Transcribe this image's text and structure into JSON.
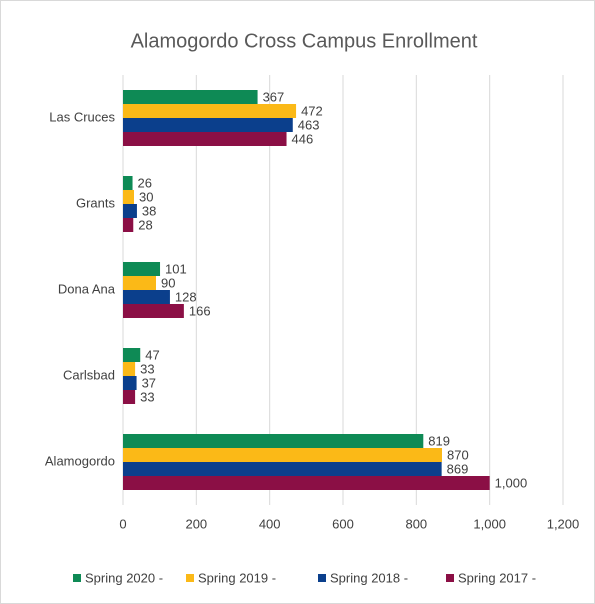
{
  "chart_data": {
    "type": "bar",
    "orientation": "horizontal",
    "title": "Alamogordo Cross Campus Enrollment",
    "categories": [
      "Las Cruces",
      "Grants",
      "Dona Ana",
      "Carlsbad",
      "Alamogordo"
    ],
    "series": [
      {
        "name": "Spring 2020 -",
        "color": "#0e8a55",
        "values": [
          367,
          26,
          101,
          47,
          819
        ]
      },
      {
        "name": "Spring 2019 -",
        "color": "#fbb917",
        "values": [
          472,
          30,
          90,
          33,
          870
        ]
      },
      {
        "name": "Spring 2018 -",
        "color": "#0b3f8c",
        "values": [
          463,
          38,
          128,
          37,
          869
        ]
      },
      {
        "name": "Spring 2017 -",
        "color": "#8b0f45",
        "values": [
          446,
          28,
          166,
          33,
          1000
        ],
        "value_labels": [
          "446",
          "28",
          "166",
          "33",
          "1,000"
        ]
      }
    ],
    "xlim": [
      0,
      1200
    ],
    "xticks": [
      0,
      200,
      400,
      600,
      800,
      {
        "value": 1000,
        "label": "1,000"
      },
      {
        "value": 1200,
        "label": "1,200"
      }
    ],
    "grid": true,
    "legend": "bottom"
  }
}
